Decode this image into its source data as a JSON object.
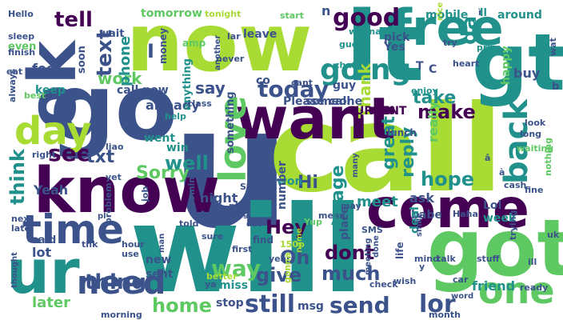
{
  "word_cloud": {
    "background": "#ffffff",
    "palette": [
      "#440154",
      "#3b528b",
      "#21918c",
      "#5ec962",
      "#a8db34",
      "#fde725"
    ],
    "words": [
      {
        "text": "u",
        "color": "#3b528b"
      },
      {
        "text": "call",
        "color": "#a8db34"
      },
      {
        "text": "will",
        "color": "#21918c"
      },
      {
        "text": "now",
        "color": "#a8db34"
      },
      {
        "text": "got",
        "color": "#5ec962"
      },
      {
        "text": "go",
        "color": "#3b528b"
      },
      {
        "text": "know",
        "color": "#440154"
      },
      {
        "text": "gt",
        "color": "#21918c"
      },
      {
        "text": "lt",
        "color": "#21918c"
      },
      {
        "text": "free",
        "color": "#21918c"
      },
      {
        "text": "want",
        "color": "#440154"
      },
      {
        "text": "ok",
        "color": "#3b528b"
      },
      {
        "text": "ur",
        "color": "#21918c"
      },
      {
        "text": "come",
        "color": "#440154"
      },
      {
        "text": "one",
        "color": "#5ec962"
      },
      {
        "text": "time",
        "color": "#3b528b"
      },
      {
        "text": "love",
        "color": "#5ec962"
      },
      {
        "text": "day",
        "color": "#a8db34"
      },
      {
        "text": "need",
        "color": "#3b528b"
      },
      {
        "text": "good",
        "color": "#440154"
      },
      {
        "text": "going",
        "color": "#21918c"
      },
      {
        "text": "back",
        "color": "#21918c"
      },
      {
        "text": "today",
        "color": "#3b528b"
      },
      {
        "text": "home",
        "color": "#5ec962"
      },
      {
        "text": "still",
        "color": "#3b528b"
      },
      {
        "text": "send",
        "color": "#3b528b"
      },
      {
        "text": "lor",
        "color": "#3b528b"
      },
      {
        "text": "tell",
        "color": "#440154"
      },
      {
        "text": "text",
        "color": "#3b528b"
      },
      {
        "text": "da",
        "color": "#21918c"
      },
      {
        "text": "think",
        "color": "#21918c"
      },
      {
        "text": "see",
        "color": "#440154"
      },
      {
        "text": "txt",
        "color": "#3b528b"
      },
      {
        "text": "Sorry",
        "color": "#5ec962"
      },
      {
        "text": "well",
        "color": "#21918c"
      },
      {
        "text": "thing",
        "color": "#3b528b"
      },
      {
        "text": "make",
        "color": "#440154"
      },
      {
        "text": "take",
        "color": "#21918c"
      },
      {
        "text": "hope",
        "color": "#21918c"
      },
      {
        "text": "reply",
        "color": "#21918c"
      },
      {
        "text": "great",
        "color": "#21918c"
      },
      {
        "text": "message",
        "color": "#21918c"
      },
      {
        "text": "way",
        "color": "#5ec962"
      },
      {
        "text": "give",
        "color": "#3b528b"
      },
      {
        "text": "much",
        "color": "#3b528b"
      },
      {
        "text": "Hey",
        "color": "#440154"
      },
      {
        "text": "dont",
        "color": "#440154"
      },
      {
        "text": "Oh",
        "color": "#3b528b"
      },
      {
        "text": "work",
        "color": "#5ec962"
      },
      {
        "text": "phone",
        "color": "#21918c"
      },
      {
        "text": "say",
        "color": "#3b528b"
      },
      {
        "text": "let",
        "color": "#3b528b"
      },
      {
        "text": "Hi",
        "color": "#3b528b"
      },
      {
        "text": "Thank",
        "color": "#a8db34"
      },
      {
        "text": "night",
        "color": "#3b528b"
      },
      {
        "text": "Yeah",
        "color": "#3b528b"
      },
      {
        "text": "meet",
        "color": "#21918c"
      },
      {
        "text": "friend",
        "color": "#21918c"
      },
      {
        "text": "already",
        "color": "#3b528b"
      },
      {
        "text": "ask",
        "color": "#3b528b"
      },
      {
        "text": "babe",
        "color": "#3b528b"
      },
      {
        "text": "week",
        "color": "#21918c"
      },
      {
        "text": "Lol",
        "color": "#3b528b"
      },
      {
        "text": "tomorrow",
        "color": "#5ec962"
      },
      {
        "text": "mobile",
        "color": "#21918c"
      },
      {
        "text": "around",
        "color": "#21918c"
      },
      {
        "text": "feel",
        "color": "#3b528b"
      },
      {
        "text": "keep",
        "color": "#21918c"
      },
      {
        "text": "call now",
        "color": "#3b528b"
      },
      {
        "text": "Please call",
        "color": "#3b528b"
      },
      {
        "text": "URGENT",
        "color": "#440154"
      },
      {
        "text": "someone",
        "color": "#3b528b"
      },
      {
        "text": "leave",
        "color": "#3b528b"
      },
      {
        "text": "guy",
        "color": "#3b528b"
      },
      {
        "text": "Yes",
        "color": "#3b528b"
      },
      {
        "text": "pick",
        "color": "#3b528b"
      },
      {
        "text": "co",
        "color": "#3b528b"
      },
      {
        "text": "won",
        "color": "#21918c"
      },
      {
        "text": "deal",
        "color": "#21918c"
      },
      {
        "text": "sent",
        "color": "#3b528b"
      },
      {
        "text": "lot",
        "color": "#3b528b"
      },
      {
        "text": "said",
        "color": "#3b528b"
      },
      {
        "text": "new",
        "color": "#3b528b"
      },
      {
        "text": "miss",
        "color": "#21918c"
      },
      {
        "text": "stop",
        "color": "#3b528b"
      },
      {
        "text": "msg",
        "color": "#3b528b"
      },
      {
        "text": "later",
        "color": "#5ec962"
      },
      {
        "text": "wait",
        "color": "#3b528b"
      },
      {
        "text": "soon",
        "color": "#3b528b"
      },
      {
        "text": "win",
        "color": "#21918c"
      },
      {
        "text": "went",
        "color": "#21918c"
      },
      {
        "text": "really",
        "color": "#5ec962"
      },
      {
        "text": "buy",
        "color": "#3b528b"
      },
      {
        "text": "happy",
        "color": "#5ec962"
      },
      {
        "text": "money",
        "color": "#3b528b"
      },
      {
        "text": "amp",
        "color": "#5ec962"
      },
      {
        "text": "anything",
        "color": "#21918c"
      },
      {
        "text": "something",
        "color": "#3b528b"
      },
      {
        "text": "number",
        "color": "#3b528b"
      },
      {
        "text": "place",
        "color": "#3b528b"
      },
      {
        "text": "lunch",
        "color": "#3b528b"
      },
      {
        "text": "chat",
        "color": "#21918c"
      },
      {
        "text": "enjoy",
        "color": "#21918c"
      },
      {
        "text": "wanna",
        "color": "#21918c"
      },
      {
        "text": "guess",
        "color": "#21918c"
      },
      {
        "text": "prize",
        "color": "#21918c"
      },
      {
        "text": "tonight",
        "color": "#a8db34"
      },
      {
        "text": "Hello",
        "color": "#3b528b"
      },
      {
        "text": "sleep",
        "color": "#3b528b"
      },
      {
        "text": "even",
        "color": "#5ec962"
      },
      {
        "text": "eat",
        "color": "#3b528b"
      },
      {
        "text": "always",
        "color": "#3b528b"
      },
      {
        "text": "best",
        "color": "#5ec962"
      },
      {
        "text": "right",
        "color": "#3b528b"
      },
      {
        "text": "next",
        "color": "#3b528b"
      },
      {
        "text": "late",
        "color": "#3b528b"
      },
      {
        "text": "thought",
        "color": "#3b528b"
      },
      {
        "text": "finish",
        "color": "#3b528b"
      },
      {
        "text": "morning",
        "color": "#3b528b"
      },
      {
        "text": "start",
        "color": "#5ec962"
      },
      {
        "text": "cant",
        "color": "#3b528b"
      },
      {
        "text": "never",
        "color": "#3b528b"
      },
      {
        "text": "class",
        "color": "#3b528b"
      },
      {
        "text": "help",
        "color": "#21918c"
      },
      {
        "text": "girl",
        "color": "#3b528b"
      },
      {
        "text": "sure",
        "color": "#3b528b"
      },
      {
        "text": "yet",
        "color": "#3b528b"
      },
      {
        "text": "job",
        "color": "#3b528b"
      },
      {
        "text": "coming",
        "color": "#3b528b"
      },
      {
        "text": "told",
        "color": "#3b528b"
      },
      {
        "text": "plan",
        "color": "#3b528b"
      },
      {
        "text": "getting",
        "color": "#3b528b"
      },
      {
        "text": "hour",
        "color": "#3b528b"
      },
      {
        "text": "use",
        "color": "#3b528b"
      },
      {
        "text": "problem",
        "color": "#3b528b"
      },
      {
        "text": "Sir",
        "color": "#3b528b"
      },
      {
        "text": "call later",
        "color": "#3b528b"
      },
      {
        "text": "first",
        "color": "#3b528b"
      },
      {
        "text": "find",
        "color": "#3b528b"
      },
      {
        "text": "year",
        "color": "#3b528b"
      },
      {
        "text": "life",
        "color": "#3b528b"
      },
      {
        "text": "SMS",
        "color": "#3b528b"
      },
      {
        "text": "done",
        "color": "#3b528b"
      },
      {
        "text": "meeting",
        "color": "#3b528b"
      },
      {
        "text": "wish",
        "color": "#3b528b"
      },
      {
        "text": "mind",
        "color": "#3b528b"
      },
      {
        "text": "talk",
        "color": "#3b528b"
      },
      {
        "text": "stuff",
        "color": "#3b528b"
      },
      {
        "text": "uk",
        "color": "#3b528b"
      },
      {
        "text": "ill",
        "color": "#3b528b"
      },
      {
        "text": "trying",
        "color": "#3b528b"
      },
      {
        "text": "ready",
        "color": "#3b528b"
      },
      {
        "text": "car",
        "color": "#3b528b"
      },
      {
        "text": "word",
        "color": "#3b528b"
      },
      {
        "text": "month",
        "color": "#3b528b"
      },
      {
        "text": "check",
        "color": "#3b528b"
      },
      {
        "text": "man",
        "color": "#3b528b"
      },
      {
        "text": "ya",
        "color": "#3b528b"
      },
      {
        "text": "better",
        "color": "#a8db34"
      },
      {
        "text": "gonna",
        "color": "#a8db34"
      },
      {
        "text": "fine",
        "color": "#3b528b"
      },
      {
        "text": "nothing",
        "color": "#5ec962"
      },
      {
        "text": "cash",
        "color": "#3b528b"
      },
      {
        "text": "look",
        "color": "#3b528b"
      },
      {
        "text": "long",
        "color": "#3b528b"
      },
      {
        "text": "waiting",
        "color": "#5ec962"
      },
      {
        "text": "heart",
        "color": "#3b528b"
      },
      {
        "text": "try",
        "color": "#3b528b"
      },
      {
        "text": "nice",
        "color": "#a8db34"
      },
      {
        "text": "Haha",
        "color": "#3b528b"
      },
      {
        "text": "smile",
        "color": "#3b528b"
      },
      {
        "text": "may",
        "color": "#3b528b"
      },
      {
        "text": "mean",
        "color": "#3b528b"
      },
      {
        "text": "many",
        "color": "#3b528b"
      },
      {
        "text": "liao",
        "color": "#3b528b"
      },
      {
        "text": "thk",
        "color": "#3b528b"
      },
      {
        "text": "Yup",
        "color": "#5ec962"
      },
      {
        "text": "150p",
        "color": "#a8db34"
      },
      {
        "text": "name",
        "color": "#a8db34"
      },
      {
        "text": "dat",
        "color": "#3b528b"
      },
      {
        "text": "pl",
        "color": "#3b528b"
      },
      {
        "text": "lar",
        "color": "#3b528b"
      },
      {
        "text": "another",
        "color": "#3b528b"
      },
      {
        "text": "b",
        "color": "#3b528b"
      },
      {
        "text": "wat",
        "color": "#3b528b"
      },
      {
        "text": "T",
        "color": "#3b528b"
      },
      {
        "text": "C",
        "color": "#3b528b"
      },
      {
        "text": "n",
        "color": "#3b528b"
      },
      {
        "text": "Â",
        "color": "#21918c"
      },
      {
        "text": "I",
        "color": "#3b528b"
      },
      {
        "text": "â",
        "color": "#3b528b"
      },
      {
        "text": "ì",
        "color": "#3b528b"
      },
      {
        "text": "ll",
        "color": "#21918c"
      },
      {
        "text": "à",
        "color": "#3b528b"
      },
      {
        "text": "y",
        "color": "#3b528b"
      }
    ]
  }
}
